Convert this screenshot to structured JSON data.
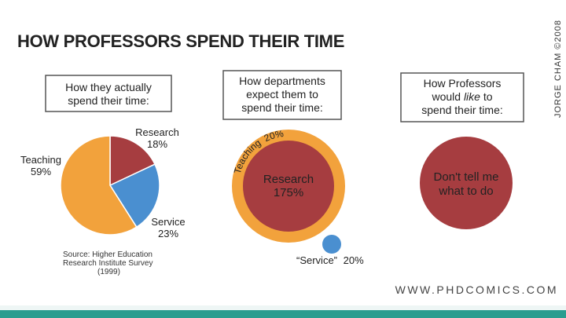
{
  "title": "HOW PROFESSORS SPEND THEIR TIME",
  "credit": "JORGE CHAM ©2008",
  "website": "WWW.PHDCOMICS.COM",
  "chart_data": [
    {
      "type": "pie",
      "heading": [
        "How they actually",
        "spend their time:"
      ],
      "categories": [
        "Research",
        "Service",
        "Teaching"
      ],
      "values": [
        18,
        23,
        59
      ],
      "value_labels": [
        "18%",
        "23%",
        "59%"
      ],
      "colors": [
        "#a63d40",
        "#4a8fd0",
        "#f2a23c"
      ],
      "source": [
        "Source: Higher Education",
        "Research Institute Survey",
        "(1999)"
      ]
    },
    {
      "type": "pie",
      "heading": [
        "How departments",
        "expect them to",
        "spend their time:"
      ],
      "categories": [
        "Teaching",
        "Research",
        "“Service”"
      ],
      "values": [
        20,
        175,
        20
      ],
      "value_labels": [
        "20%",
        "175%",
        "20%"
      ],
      "colors": [
        "#f2a23c",
        "#a63d40",
        "#4a8fd0"
      ]
    },
    {
      "type": "pie",
      "heading": [
        "How Professors",
        "would like to",
        "spend their time:"
      ],
      "heading_italic_word": "like",
      "categories": [
        "Don't tell me what to do"
      ],
      "center_text": [
        "Don't tell me",
        "what to do"
      ],
      "colors": [
        "#a63d40"
      ]
    }
  ]
}
